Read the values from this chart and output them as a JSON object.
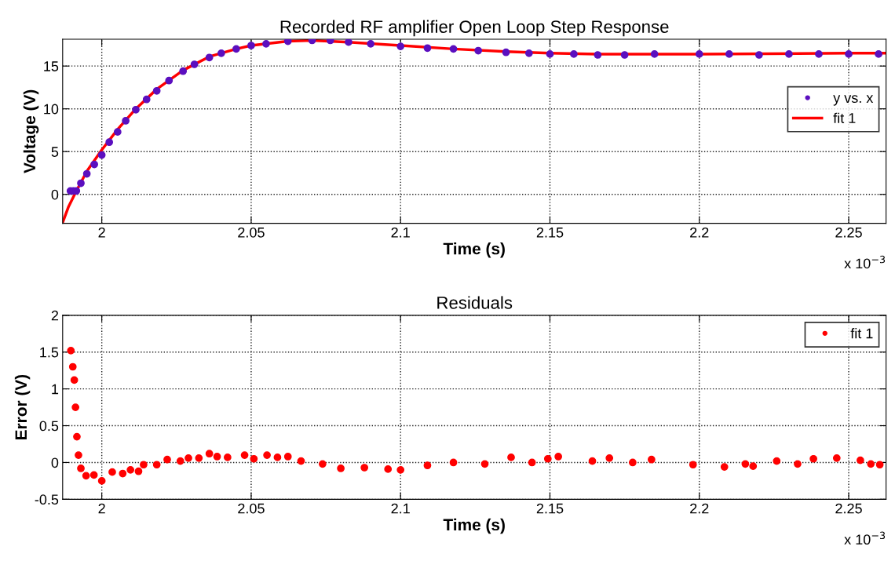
{
  "chart_data": [
    {
      "type": "scatter",
      "title": "Recorded RF amplifier Open Loop Step Response",
      "xlabel": "Time (s)",
      "ylabel": "Voltage (V)",
      "xlim": [
        1.9869,
        2.2625
      ],
      "xticks": [
        2,
        2.05,
        2.1,
        2.15,
        2.2,
        2.25
      ],
      "ylim": [
        -3.38,
        18.13
      ],
      "yticks": [
        0,
        5,
        10,
        15
      ],
      "grid": true,
      "legend": "right",
      "annotations": [
        "x 10$^{−3}$"
      ],
      "series": [
        {
          "name": "y vs. x",
          "marker": "circle",
          "color": "#5b0fbf",
          "x": [
            1.9895,
            1.9905,
            1.9915,
            1.993,
            1.995,
            1.9975,
            2.0,
            2.0025,
            2.0053,
            2.008,
            2.0114,
            2.015,
            2.0184,
            2.0225,
            2.0272,
            2.031,
            2.036,
            2.04,
            2.045,
            2.05,
            2.055,
            2.0623,
            2.0704,
            2.0765,
            2.0826,
            2.09,
            2.1,
            2.109,
            2.1177,
            2.126,
            2.1353,
            2.143,
            2.15,
            2.158,
            2.166,
            2.175,
            2.185,
            2.2,
            2.21,
            2.22,
            2.23,
            2.24,
            2.25,
            2.26
          ],
          "values": [
            0.4,
            0.4,
            0.4,
            1.3,
            2.4,
            3.5,
            4.6,
            6.1,
            7.3,
            8.6,
            9.9,
            11.1,
            12.1,
            13.3,
            14.4,
            15.2,
            16.0,
            16.5,
            17.0,
            17.4,
            17.6,
            17.9,
            18.0,
            18.0,
            17.8,
            17.6,
            17.3,
            17.1,
            17.0,
            16.8,
            16.6,
            16.5,
            16.4,
            16.4,
            16.3,
            16.3,
            16.4,
            16.4,
            16.4,
            16.3,
            16.4,
            16.4,
            16.4,
            16.4
          ]
        },
        {
          "name": "fit 1",
          "type": "line",
          "line_style": "solid",
          "color": "#ff0000",
          "x": [
            1.9869,
            1.9888,
            1.9912,
            1.995,
            2.0,
            2.0053,
            2.0114,
            2.0184,
            2.0272,
            2.036,
            2.045,
            2.05,
            2.0623,
            2.0704,
            2.0826,
            2.1,
            2.1177,
            2.1353,
            2.15,
            2.166,
            2.2,
            2.25,
            2.2625
          ],
          "values": [
            -3.3,
            -1.5,
            0.2,
            2.7,
            5.2,
            7.6,
            10.0,
            12.3,
            14.5,
            16.1,
            17.0,
            17.4,
            17.9,
            18.0,
            17.8,
            17.4,
            17.0,
            16.7,
            16.5,
            16.4,
            16.4,
            16.5,
            16.5
          ]
        }
      ]
    },
    {
      "type": "scatter",
      "title": "Residuals",
      "xlabel": "Time (s)",
      "ylabel": "Error (V)",
      "xlim": [
        1.9869,
        2.2625
      ],
      "xticks": [
        2,
        2.05,
        2.1,
        2.15,
        2.2,
        2.25
      ],
      "ylim": [
        -0.5,
        2
      ],
      "yticks": [
        -0.5,
        0,
        0.5,
        1,
        1.5,
        2
      ],
      "grid": true,
      "legend": "top right",
      "annotations": [
        "x 10$^{−3}$"
      ],
      "series": [
        {
          "name": "fit 1",
          "marker": "circle",
          "color": "#ff0000",
          "x": [
            1.98965,
            1.9903,
            1.9908,
            1.9912,
            1.99167,
            1.9922,
            1.993,
            1.99474,
            1.99737,
            2.0,
            2.0035,
            2.007,
            2.0096,
            2.0123,
            2.014,
            2.0184,
            2.0219,
            2.0263,
            2.029,
            2.0325,
            2.036,
            2.0386,
            2.0421,
            2.0478,
            2.0509,
            2.0553,
            2.0588,
            2.0623,
            2.0667,
            2.0739,
            2.08,
            2.0879,
            2.0958,
            2.1,
            2.109,
            2.1177,
            2.1282,
            2.137,
            2.144,
            2.1493,
            2.1528,
            2.1642,
            2.1699,
            2.1777,
            2.184,
            2.1979,
            2.2084,
            2.2154,
            2.218,
            2.2259,
            2.2329,
            2.2382,
            2.246,
            2.2539,
            2.2574,
            2.2604
          ],
          "values": [
            1.52,
            1.3,
            1.12,
            0.75,
            0.35,
            0.1,
            -0.08,
            -0.18,
            -0.17,
            -0.25,
            -0.13,
            -0.15,
            -0.1,
            -0.12,
            -0.03,
            -0.03,
            0.04,
            0.02,
            0.06,
            0.06,
            0.12,
            0.08,
            0.07,
            0.1,
            0.05,
            0.1,
            0.07,
            0.08,
            0.02,
            -0.02,
            -0.08,
            -0.07,
            -0.09,
            -0.1,
            -0.04,
            0.0,
            -0.02,
            0.07,
            0.0,
            0.05,
            0.08,
            0.02,
            0.06,
            0.0,
            0.04,
            -0.03,
            -0.06,
            -0.02,
            -0.05,
            0.02,
            -0.02,
            0.05,
            0.06,
            0.03,
            -0.02,
            -0.03
          ]
        }
      ]
    }
  ]
}
